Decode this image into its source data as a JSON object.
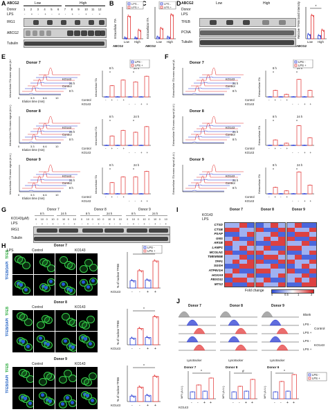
{
  "panels": {
    "A": {
      "label": "A",
      "header": [
        "ABCG2",
        "Low",
        "High"
      ],
      "row_labels": [
        "Donor",
        "LPS",
        "IRG1",
        "ABCG2",
        "Tubulin"
      ],
      "donor_numbers": [
        "1",
        "2",
        "3",
        "4",
        "5",
        "6",
        "7",
        "8",
        "9",
        "10",
        "11",
        "12"
      ],
      "lps_signs": [
        "-",
        "+",
        "-",
        "+",
        "-",
        "+",
        "-",
        "+",
        "-",
        "+",
        "-",
        "+"
      ]
    },
    "B": {
      "label": "B",
      "ylabel": "Intracellular ITA",
      "xlabel": "ABCG2",
      "groups": [
        "Low",
        "High"
      ]
    },
    "C": {
      "label": "C",
      "ylabel": "Extracellular ITA",
      "xlabel": "ABCG2",
      "groups": [
        "Low",
        "High"
      ]
    },
    "D": {
      "label": "D",
      "header": [
        "ABCG2",
        "Low",
        "High"
      ],
      "row_labels": [
        "Donor",
        "LPS",
        "TFEB",
        "PCNA",
        "Tubulin"
      ]
    },
    "D_chart": {
      "label": "",
      "ylabel": "Relative TFEB band intensity",
      "xlabel": "ABCG2",
      "groups": [
        "Low",
        "High"
      ]
    },
    "E": {
      "label": "E",
      "donors": [
        "Donor 7",
        "Donor 8",
        "Donor 9"
      ],
      "trace_labels": [
        "KO143",
        "Control",
        "KO143",
        "Control"
      ],
      "times": [
        "24 h",
        "8 h"
      ],
      "xaxis": "Elution time (min)",
      "xticks": [
        "0",
        "3.3",
        "6.6",
        "10"
      ],
      "ylabel": "Intracellular ITA mass signal (A.U.)",
      "bar_ylabel": "Intracellular ITA",
      "bar_rows": [
        "Control",
        "KO143"
      ],
      "bar_signs": [
        "-",
        "+",
        "-",
        "+"
      ]
    },
    "F": {
      "label": "F",
      "donors": [
        "Donor 7",
        "Donor 8",
        "Donor 9"
      ],
      "ylabel": "Extracellular ITA mass signal (A.U.)",
      "bar_ylabel": "Extracellular ITA"
    },
    "G": {
      "label": "G",
      "donors": [
        "Donor 7",
        "Donor 8",
        "Donor 9"
      ],
      "times": [
        "8 h",
        "24 h"
      ],
      "row_labels": [
        "KO143(μM)",
        "LPS",
        "IRG1",
        "Tubulin"
      ],
      "ko_values": [
        "0",
        "10",
        "0",
        "10"
      ]
    },
    "H": {
      "label": "H",
      "donors": [
        "Donor 7",
        "Donor 8",
        "Donor 9"
      ],
      "col_labels": [
        "Control",
        "KO143"
      ],
      "lps_label": "LPS",
      "stains": [
        "TFEB",
        "TFEB/DAPI"
      ],
      "ylabel": "% of nuclear TFEB",
      "xrow": "KO143"
    },
    "I": {
      "label": "I",
      "donors": [
        "Donor 7",
        "Donor 8",
        "Donor 9"
      ],
      "rows": [
        "KO143",
        "LPS"
      ],
      "genes": [
        "CTSD",
        "CTSB",
        "PSAP",
        "GNS",
        "ARSB",
        "LAMP1",
        "MCOLN1",
        "TMEM55B",
        "TPP1",
        "SGSH",
        "ATP6V1H",
        "HOXA9",
        "FBXO11",
        "MTX2"
      ],
      "colorbar_label": "Fold change",
      "colorbar_ticks": [
        "0",
        "0.5",
        "1",
        "2"
      ],
      "colors": {
        "low": "#2c4bd6",
        "mid": "#ffffff",
        "high": "#d62020"
      }
    },
    "J": {
      "label": "J",
      "donors": [
        "Donor 7",
        "Donor 8",
        "Donor 9"
      ],
      "row_labels": [
        "Blank",
        "LPS -",
        "LPS +",
        "LPS -",
        "LPS +"
      ],
      "group_labels": [
        "Control",
        "KO143"
      ],
      "xaxis": "Lysotracker",
      "ylabel": "MFI (A.U.)",
      "xrow": "KO143"
    },
    "legend": {
      "neg": "LPS -",
      "pos": "LPS +",
      "neg_color": "#1c2fd0",
      "pos_color": "#e23030"
    },
    "sig": "*",
    "sig_hash": "#"
  },
  "chart_data": [
    {
      "type": "bar",
      "panel": "B",
      "categories": [
        "Low",
        "High"
      ],
      "series": [
        {
          "name": "LPS -",
          "values": [
            0.3,
            0.3
          ]
        },
        {
          "name": "LPS +",
          "values": [
            8.5,
            3.2
          ]
        }
      ],
      "xlabel": "ABCG2",
      "ylabel": "Intracellular ITA",
      "ylim": [
        0,
        12
      ]
    },
    {
      "type": "bar",
      "panel": "C",
      "categories": [
        "Low",
        "High"
      ],
      "series": [
        {
          "name": "LPS -",
          "values": [
            0.2,
            0.2
          ]
        },
        {
          "name": "LPS +",
          "values": [
            1.3,
            3.0
          ]
        }
      ],
      "xlabel": "ABCG2",
      "ylabel": "Extracellular ITA",
      "ylim": [
        0,
        4
      ]
    },
    {
      "type": "bar",
      "panel": "D",
      "categories": [
        "Low",
        "High"
      ],
      "series": [
        {
          "name": "LPS -",
          "values": [
            0.4,
            0.3
          ]
        },
        {
          "name": "LPS +",
          "values": [
            2.2,
            0.8
          ]
        }
      ],
      "xlabel": "ABCG2",
      "ylim": [
        0,
        3
      ]
    },
    {
      "type": "bar",
      "panel": "E",
      "categories": [
        "Donor 7 8 h",
        "Donor 7 24 h",
        "Donor 8 8 h",
        "Donor 8 24 h",
        "Donor 9 8 h",
        "Donor 9 24 h"
      ],
      "series": [
        {
          "name": "LPS - Control",
          "values": [
            0.1,
            0.1,
            0.1,
            0.1,
            0.1,
            0.1
          ]
        },
        {
          "name": "LPS + Control",
          "values": [
            6,
            8,
            5,
            7,
            6,
            9
          ]
        },
        {
          "name": "LPS - KO143",
          "values": [
            0.1,
            0.1,
            0.1,
            0.1,
            0.1,
            0.1
          ]
        },
        {
          "name": "LPS + KO143",
          "values": [
            9,
            11,
            8,
            10,
            9,
            12
          ]
        }
      ],
      "ylim": [
        0,
        14
      ]
    },
    {
      "type": "bar",
      "panel": "F",
      "categories": [
        "Donor 7 8 h",
        "Donor 7 24 h",
        "Donor 8 8 h",
        "Donor 8 24 h",
        "Donor 9 8 h",
        "Donor 9 24 h"
      ],
      "series": [
        {
          "name": "LPS - Control",
          "values": [
            0.1,
            0.1,
            0.1,
            0.1,
            0.1,
            0.1
          ]
        },
        {
          "name": "LPS + Control",
          "values": [
            3,
            8,
            2.5,
            9,
            3,
            10
          ]
        },
        {
          "name": "LPS - KO143",
          "values": [
            0.1,
            0.1,
            0.1,
            0.1,
            0.1,
            0.1
          ]
        },
        {
          "name": "LPS + KO143",
          "values": [
            1.2,
            3,
            1,
            3.5,
            1.4,
            4
          ]
        }
      ],
      "ylim": [
        0,
        12
      ]
    },
    {
      "type": "bar",
      "panel": "H",
      "categories": [
        "Donor 7",
        "Donor 8",
        "Donor 9"
      ],
      "series": [
        {
          "name": "LPS - Control",
          "values": [
            20,
            18,
            15
          ]
        },
        {
          "name": "LPS + Control",
          "values": [
            48,
            45,
            40
          ]
        },
        {
          "name": "LPS - KO143",
          "values": [
            22,
            20,
            17
          ]
        },
        {
          "name": "LPS + KO143",
          "values": [
            75,
            78,
            70
          ]
        }
      ],
      "ylabel": "% of nuclear TFEB",
      "ylim": [
        0,
        100
      ]
    },
    {
      "type": "bar",
      "panel": "J",
      "categories": [
        "Donor 7",
        "Donor 8",
        "Donor 9"
      ],
      "series": [
        {
          "name": "LPS - Control",
          "values": [
            1.0,
            1.0,
            1.0
          ]
        },
        {
          "name": "LPS + Control",
          "values": [
            2.0,
            1.8,
            2.5
          ]
        },
        {
          "name": "LPS - KO143",
          "values": [
            1.1,
            1.1,
            1.1
          ]
        },
        {
          "name": "LPS + KO143",
          "values": [
            3.0,
            2.8,
            3.5
          ]
        }
      ],
      "ylabel": "MFI (A.U.)",
      "ylim": [
        0,
        4
      ]
    }
  ]
}
